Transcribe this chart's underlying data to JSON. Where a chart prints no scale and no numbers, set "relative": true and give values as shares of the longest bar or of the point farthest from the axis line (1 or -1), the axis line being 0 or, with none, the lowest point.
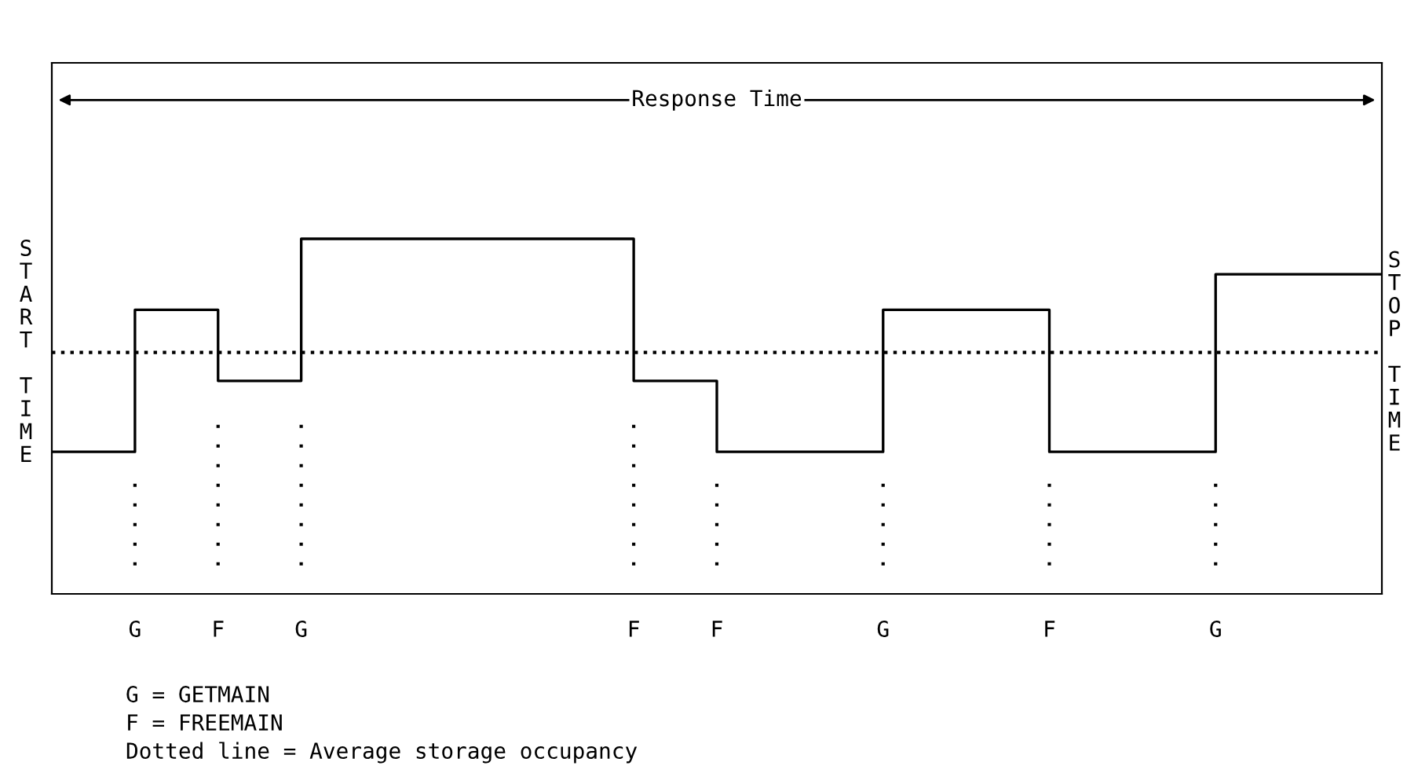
{
  "chart_data": {
    "type": "step",
    "relative": true,
    "categories": [
      null,
      "G",
      "F",
      "G",
      null,
      null,
      null,
      "F",
      "F",
      null,
      "G",
      null,
      "F",
      null,
      "G",
      null,
      null
    ],
    "series": [
      {
        "color": "#000000",
        "values": [
          0.4,
          0.8,
          0.6,
          1.0,
          1.0,
          1.0,
          1.0,
          0.6,
          0.4,
          0.4,
          0.8,
          0.8,
          0.4,
          0.4,
          0.9,
          0.9,
          0.9
        ]
      }
    ],
    "ylabel": "START TIME",
    "y2label": "STOP TIME",
    "ref_lines": [
      {
        "axis": "y",
        "value": 0.68,
        "color": "#000000",
        "line_style": "dotted"
      }
    ],
    "annotations": [
      "Response Time",
      "G = GETMAIN",
      "F = FREEMAIN",
      "Dotted line = Average storage occupancy"
    ],
    "grid": false,
    "marker": "none",
    "line_style": "solid"
  }
}
